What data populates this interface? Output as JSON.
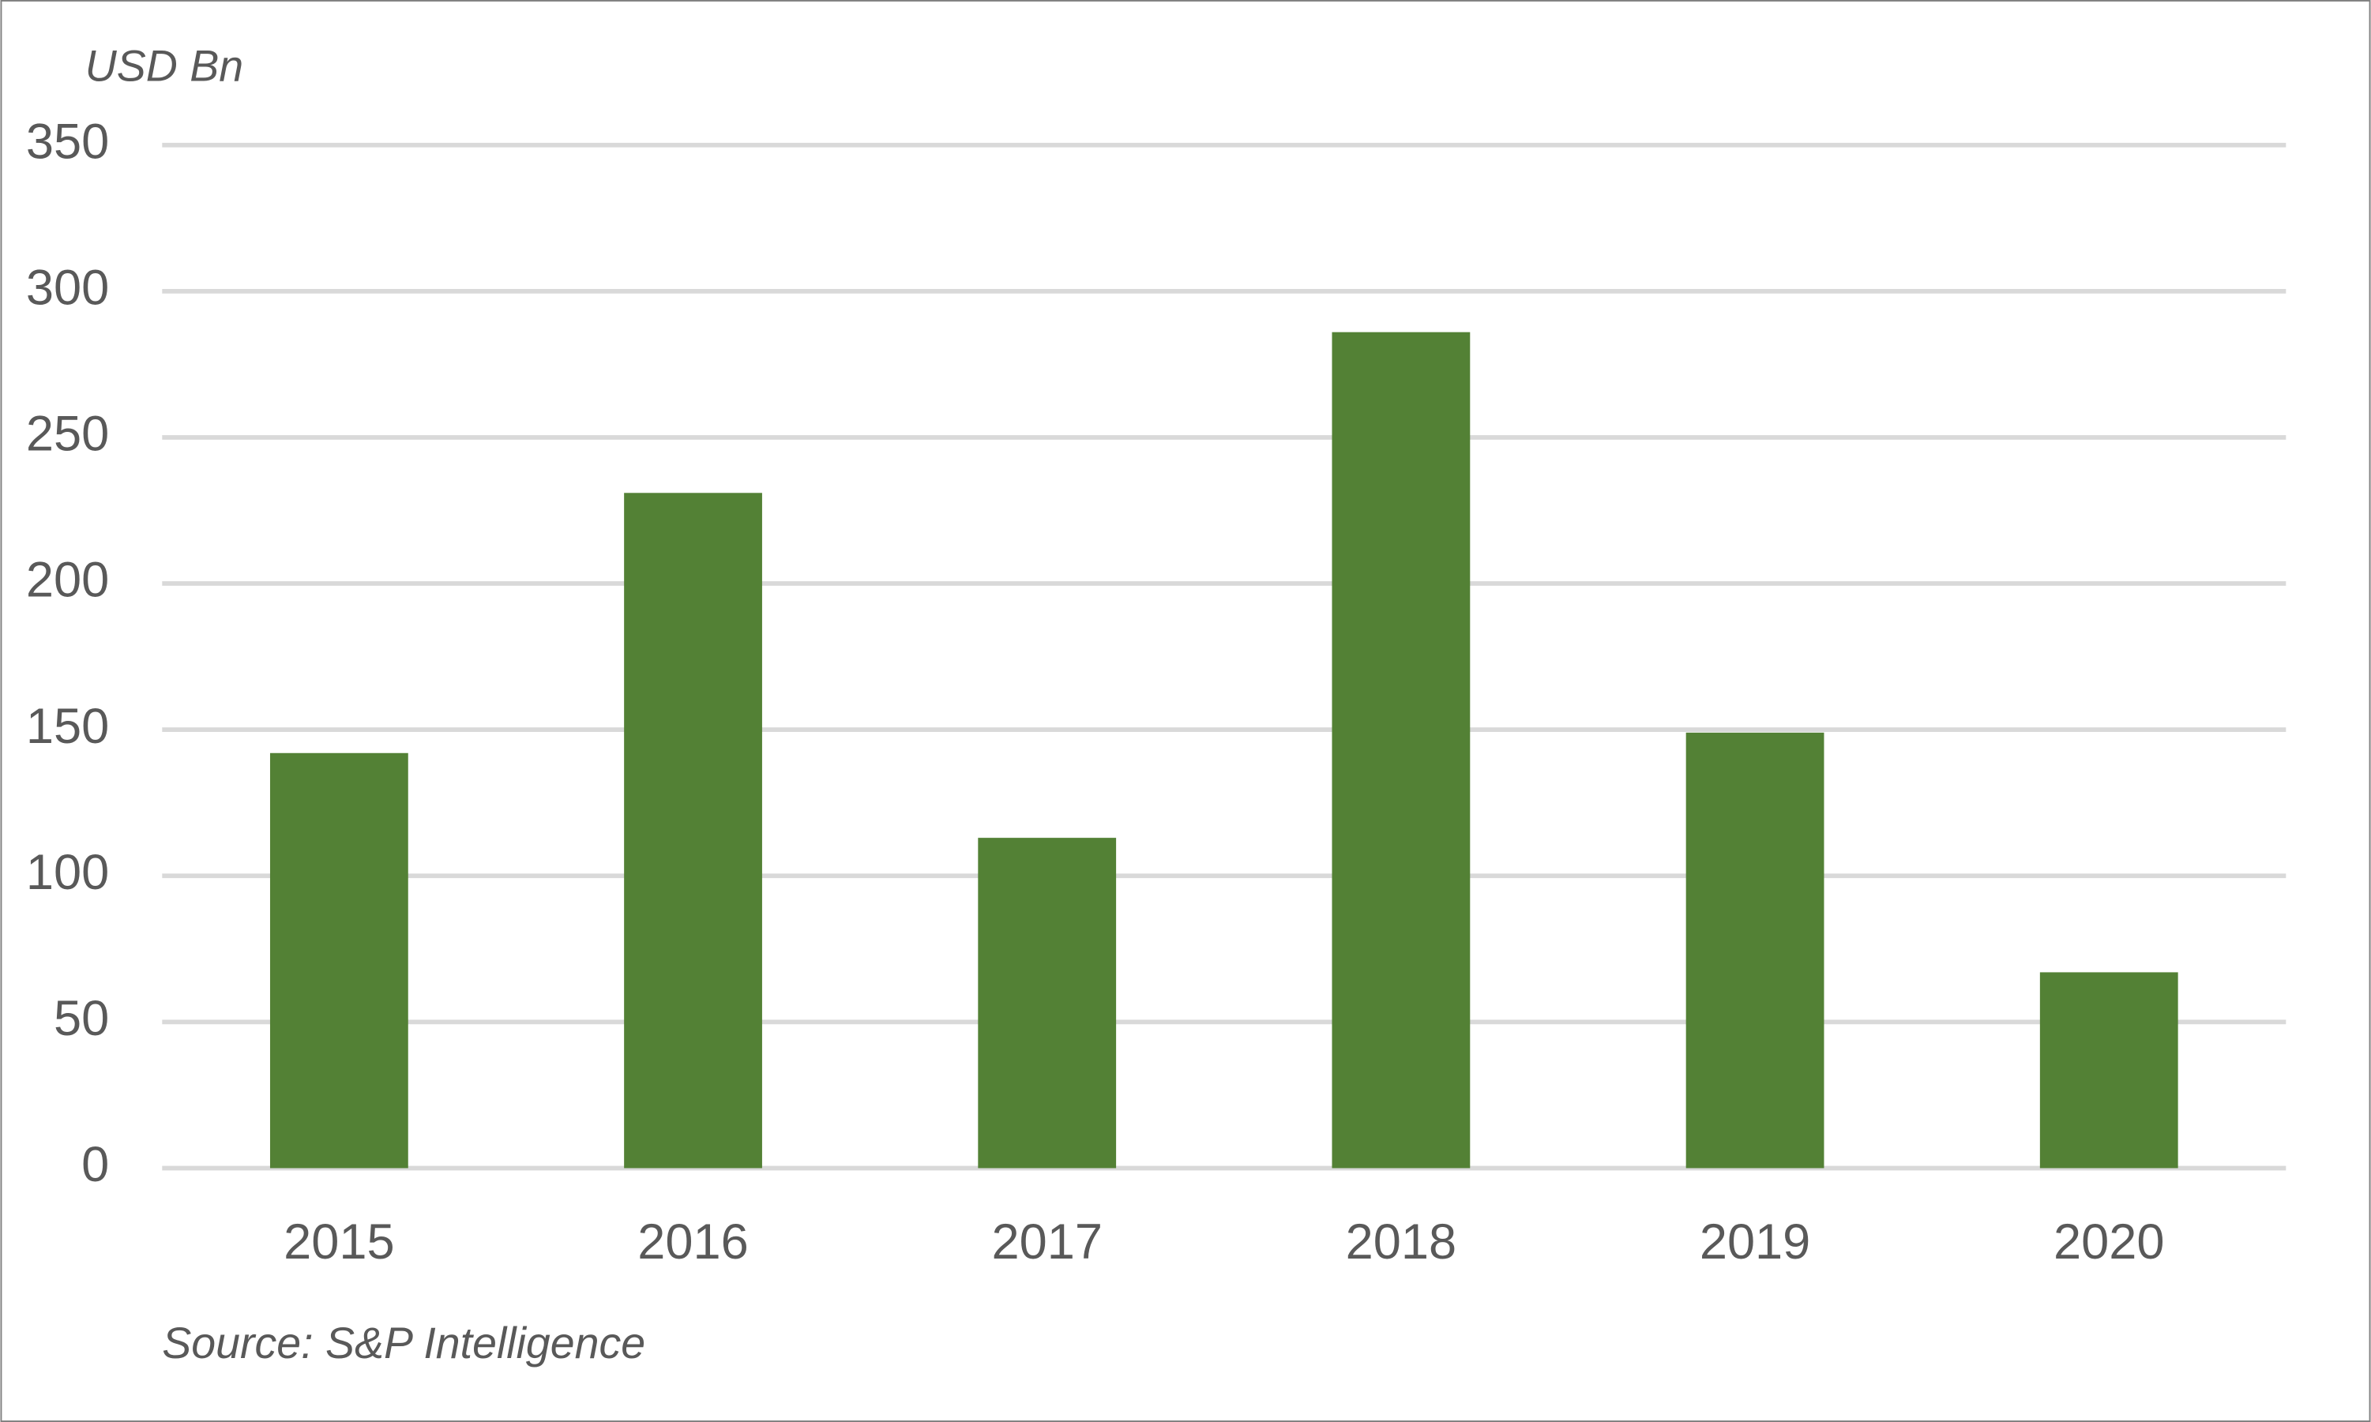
{
  "chart_data": {
    "type": "bar",
    "y_label": "USD Bn",
    "source": "Source: S&P Intelligence",
    "categories": [
      "2015",
      "2016",
      "2017",
      "2018",
      "2019",
      "2020"
    ],
    "values": [
      142,
      231,
      113,
      286,
      149,
      67
    ],
    "color": "#538135",
    "ylim": [
      0,
      350
    ],
    "yticks": [
      0,
      50,
      100,
      150,
      200,
      250,
      300,
      350
    ],
    "grid": true
  }
}
